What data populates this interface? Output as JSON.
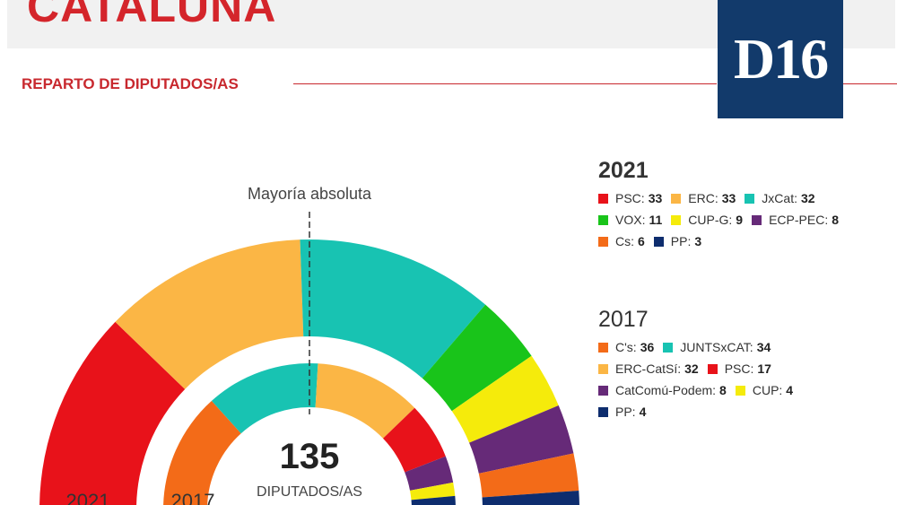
{
  "header": {
    "region": "CATALUÑA",
    "logo": "D16",
    "section": "REPARTO DE DIPUTADOS/AS"
  },
  "chart_data": {
    "type": "donut-parliament",
    "majority_label": "Mayoría absoluta",
    "total": "135",
    "total_label": "DIPUTADOS/AS",
    "rings": [
      {
        "year": "2021",
        "parties": [
          {
            "name": "PSC",
            "seats": 33,
            "color": "#e8121a"
          },
          {
            "name": "ERC",
            "seats": 33,
            "color": "#fbb645"
          },
          {
            "name": "JxCat",
            "seats": 32,
            "color": "#18c3b2"
          },
          {
            "name": "VOX",
            "seats": 11,
            "color": "#19c41a"
          },
          {
            "name": "CUP-G",
            "seats": 9,
            "color": "#f5eb0b"
          },
          {
            "name": "ECP-PEC",
            "seats": 8,
            "color": "#662a78"
          },
          {
            "name": "Cs",
            "seats": 6,
            "color": "#f36b18"
          },
          {
            "name": "PP",
            "seats": 3,
            "color": "#0e2d6e"
          }
        ]
      },
      {
        "year": "2017",
        "parties": [
          {
            "name": "C's",
            "seats": 36,
            "color": "#f36b18"
          },
          {
            "name": "JUNTSxCAT",
            "seats": 34,
            "color": "#18c3b2"
          },
          {
            "name": "ERC-CatSí",
            "seats": 32,
            "color": "#fbb645"
          },
          {
            "name": "PSC",
            "seats": 17,
            "color": "#e8121a"
          },
          {
            "name": "CatComú-Podem",
            "seats": 8,
            "color": "#662a78"
          },
          {
            "name": "CUP",
            "seats": 4,
            "color": "#f5eb0b"
          },
          {
            "name": "PP",
            "seats": 4,
            "color": "#0e2d6e"
          }
        ]
      }
    ]
  },
  "legend": {
    "y2021": {
      "rows": [
        [
          {
            "label": "PSC:",
            "value": "33",
            "color": "#e8121a"
          },
          {
            "label": "ERC:",
            "value": "33",
            "color": "#fbb645"
          },
          {
            "label": "JxCat:",
            "value": "32",
            "color": "#18c3b2"
          }
        ],
        [
          {
            "label": "VOX:",
            "value": "11",
            "color": "#19c41a"
          },
          {
            "label": "CUP-G:",
            "value": "9",
            "color": "#f5eb0b"
          },
          {
            "label": "ECP-PEC:",
            "value": "8",
            "color": "#662a78"
          }
        ],
        [
          {
            "label": "Cs:",
            "value": "6",
            "color": "#f36b18"
          },
          {
            "label": "PP:",
            "value": "3",
            "color": "#0e2d6e"
          }
        ]
      ]
    },
    "y2017": {
      "rows": [
        [
          {
            "label": "C's:",
            "value": "36",
            "color": "#f36b18"
          },
          {
            "label": "JUNTSxCAT:",
            "value": "34",
            "color": "#18c3b2"
          }
        ],
        [
          {
            "label": "ERC-CatSí:",
            "value": "32",
            "color": "#fbb645"
          },
          {
            "label": "PSC:",
            "value": "17",
            "color": "#e8121a"
          }
        ],
        [
          {
            "label": "CatComú-Podem:",
            "value": "8",
            "color": "#662a78"
          },
          {
            "label": "CUP:",
            "value": "4",
            "color": "#f5eb0b"
          }
        ],
        [
          {
            "label": "PP:",
            "value": "4",
            "color": "#0e2d6e"
          }
        ]
      ]
    }
  }
}
